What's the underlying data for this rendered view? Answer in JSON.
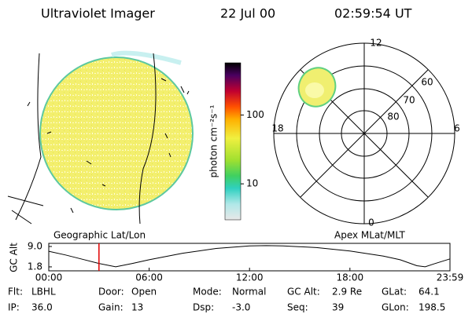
{
  "header": {
    "title": "Ultraviolet Imager",
    "date": "22 Jul 00",
    "time": "02:59:54 UT"
  },
  "colorbar": {
    "label": "photon cm⁻²s⁻¹",
    "log": true,
    "lim": [
      3,
      575
    ],
    "ticks": [
      10,
      100
    ]
  },
  "geographic_label": "Geographic Lat/Lon",
  "apex_label": "Apex MLat/MLT",
  "polar": {
    "mlt_labels": {
      "top": "12",
      "right": "6",
      "bottom": "0",
      "left": "18"
    },
    "lat_labels": [
      "60",
      "70",
      "80"
    ]
  },
  "orbit_plot": {
    "type": "line",
    "ylabel": "GC Alt",
    "x": [
      0,
      1,
      2,
      3,
      4,
      5,
      6,
      8,
      10,
      12,
      13,
      14,
      16,
      18,
      20,
      21,
      22,
      22.5,
      23,
      23.98
    ],
    "values": [
      7.3,
      6.0,
      4.5,
      3.0,
      1.8,
      3.0,
      4.3,
      6.6,
      8.3,
      9.2,
      9.3,
      9.2,
      8.6,
      7.4,
      5.6,
      4.3,
      2.2,
      1.8,
      2.8,
      4.6
    ],
    "color": "#000000",
    "xlim": [
      0,
      23.98
    ],
    "xticks": [
      {
        "value": 0,
        "label": "00:00"
      },
      {
        "value": 6,
        "label": "06:00"
      },
      {
        "value": 12,
        "label": "12:00"
      },
      {
        "value": 18,
        "label": "18:00"
      },
      {
        "value": 23.98,
        "label": "23:59"
      }
    ],
    "ylim": [
      0.4,
      10.1
    ],
    "yticks": [
      {
        "value": 9,
        "label": "9.0"
      },
      {
        "value": 1.8,
        "label": "1.8"
      }
    ],
    "marker": {
      "x": 3.0,
      "color": "#e00000"
    }
  },
  "footer": [
    {
      "label": "Flt:",
      "value": "LBHL"
    },
    {
      "label": "IP:",
      "value": "36.0"
    },
    {
      "label": "Door:",
      "value": "Open"
    },
    {
      "label": "Gain:",
      "value": "13"
    },
    {
      "label": "Mode:",
      "value": "Normal"
    },
    {
      "label": "Dsp:",
      "value": "-3.0"
    },
    {
      "label": "GC Alt:",
      "value": "2.9 Re"
    },
    {
      "label": "Seq:",
      "value": "39"
    },
    {
      "label": "GLat:",
      "value": "64.1"
    },
    {
      "label": "GLon:",
      "value": "198.5"
    }
  ]
}
